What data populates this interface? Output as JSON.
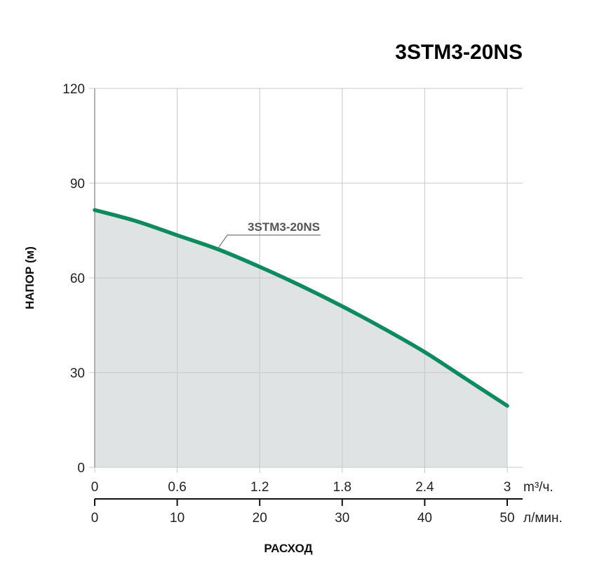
{
  "chart_data": {
    "type": "area",
    "title": "3STM3-20NS",
    "ylabel": "НАПОР (м)",
    "xlabel": "РАСХОД",
    "ylim": [
      0,
      120
    ],
    "y_ticks": [
      0,
      30,
      60,
      90,
      120
    ],
    "x_axis_primary": {
      "unit": "m³/ч.",
      "ticks": [
        "0",
        "0.6",
        "1.2",
        "1.8",
        "2.4",
        "3"
      ],
      "range": [
        0,
        3
      ]
    },
    "x_axis_secondary": {
      "unit": "л/мин.",
      "ticks": [
        "0",
        "10",
        "20",
        "30",
        "40",
        "50"
      ],
      "range": [
        0,
        50
      ]
    },
    "grid": true,
    "series": [
      {
        "name": "3STM3-20NS",
        "x": [
          0,
          0.3,
          0.6,
          0.9,
          1.2,
          1.5,
          1.8,
          2.1,
          2.4,
          2.7,
          3.0
        ],
        "y": [
          81.5,
          78,
          73.5,
          69,
          63.5,
          57.5,
          51,
          44,
          36.5,
          28,
          19.5
        ]
      }
    ],
    "colors": {
      "curve": "#0e8a5f",
      "fill": "#dfe3e4",
      "grid": "#c8c8c8",
      "title": "#0e8a5f"
    }
  }
}
